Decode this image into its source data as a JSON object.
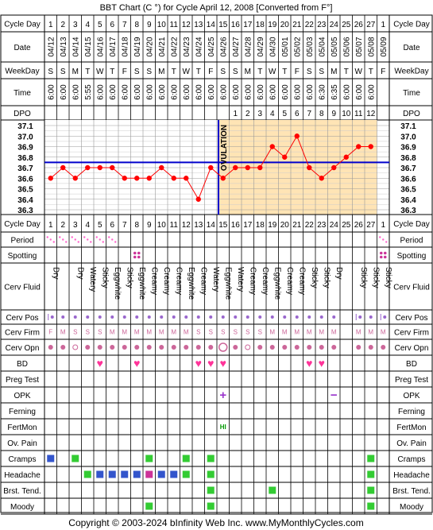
{
  "title": "BBT Chart (C °) for Cycle April 12, 2008  [Converted from F°]",
  "copyright": "Copyright © 2003-2024 bInfinity Web Inc.     www.MyMonthlyCycles.com",
  "labels": {
    "cycle_day": "Cycle Day",
    "date": "Date",
    "weekday": "WeekDay",
    "time": "Time",
    "dpo": "DPO",
    "period": "Period",
    "spotting": "Spotting",
    "cerv_fluid": "Cerv Fluid",
    "cerv_pos": "Cerv Pos",
    "cerv_firm": "Cerv Firm",
    "cerv_opn": "Cerv Opn",
    "bd": "BD",
    "preg_test": "Preg Test",
    "opk": "OPK",
    "ferning": "Ferning",
    "fertmon": "FertMon",
    "ov_pain": "Ov. Pain",
    "cramps": "Cramps",
    "headache": "Headache",
    "brst_tend": "Brst. Tend.",
    "moody": "Moody"
  },
  "colors": {
    "grid_bg": "#ffffff",
    "chart_bg_pre": "#ffffff",
    "chart_bg_post": "#ffe4b5",
    "temp_line": "#ff0000",
    "temp_point": "#ff0000",
    "coverline": "#0000cc",
    "ovulation_line": "#0000cc",
    "period": "#ff66cc",
    "spotting": "#cc3399",
    "heart": "#ff3399",
    "cramps": "#3355cc",
    "symptom_green": "#33cc33",
    "symptom_blue": "#3355cc",
    "symptom_magenta": "#cc3399",
    "cerv_dot": "#cc6699",
    "cerv_pos_dot": "#9966cc",
    "opk_mark": "#9933cc",
    "fertmon": "#009900"
  },
  "chart_data": {
    "type": "line",
    "title": "BBT Chart (C °) for Cycle April 12, 2008  [Converted from F°]",
    "cycle_days": [
      "1",
      "2",
      "3",
      "4",
      "5",
      "6",
      "7",
      "8",
      "9",
      "10",
      "11",
      "12",
      "13",
      "14",
      "15",
      "16",
      "17",
      "18",
      "19",
      "20",
      "21",
      "22",
      "23",
      "24",
      "25",
      "26",
      "27",
      "1"
    ],
    "dates": [
      "04/12",
      "04/13",
      "04/14",
      "04/15",
      "04/16",
      "04/17",
      "04/18",
      "04/19",
      "04/20",
      "04/21",
      "04/22",
      "04/23",
      "04/24",
      "04/25",
      "04/26",
      "04/27",
      "04/28",
      "04/29",
      "04/30",
      "05/01",
      "05/02",
      "05/03",
      "05/04",
      "05/05",
      "05/06",
      "05/07",
      "05/08",
      "05/09"
    ],
    "weekdays": [
      "S",
      "S",
      "M",
      "T",
      "W",
      "T",
      "F",
      "S",
      "S",
      "M",
      "T",
      "W",
      "T",
      "F",
      "S",
      "S",
      "M",
      "T",
      "W",
      "T",
      "F",
      "S",
      "S",
      "M",
      "T",
      "W",
      "T",
      "F"
    ],
    "times": [
      "6:00",
      "6:00",
      "6:00",
      "5:55",
      "6:00",
      "6:00",
      "6:00",
      "6:00",
      "6:00",
      "6:00",
      "6:00",
      "6:00",
      "6:00",
      "6:00",
      "6:00",
      "6:00",
      "6:00",
      "6:00",
      "6:00",
      "6:00",
      "6:00",
      "6:00",
      "6:30",
      "6:35",
      "6:00",
      "6:00",
      "6:00",
      ""
    ],
    "dpo": [
      "",
      "",
      "",
      "",
      "",
      "",
      "",
      "",
      "",
      "",
      "",
      "",
      "",
      "",
      "",
      "1",
      "2",
      "3",
      "4",
      "5",
      "6",
      "7",
      "8",
      "9",
      "10",
      "11",
      "12",
      ""
    ],
    "series": [
      {
        "values": [
          36.6,
          36.7,
          36.6,
          36.7,
          36.7,
          36.7,
          36.6,
          36.6,
          36.6,
          36.7,
          36.6,
          36.6,
          36.4,
          36.7,
          36.6,
          36.7,
          36.7,
          36.7,
          36.9,
          36.8,
          37.0,
          36.7,
          36.6,
          36.7,
          36.8,
          36.9,
          36.9,
          null
        ]
      }
    ],
    "ylabels": [
      "37.1",
      "37.0",
      "36.9",
      "36.8",
      "36.7",
      "36.6",
      "36.5",
      "36.4",
      "36.3"
    ],
    "ylim": [
      36.3,
      37.1
    ],
    "coverline": 36.75,
    "ovulation_day_index": 14,
    "ovulation_label": "OVULATION",
    "grid": true
  },
  "rows": {
    "period": [
      "light",
      "light",
      "light",
      "light",
      "light",
      "light",
      "",
      "",
      "",
      "",
      "",
      "",
      "",
      "",
      "",
      "",
      "",
      "",
      "",
      "",
      "",
      "",
      "",
      "",
      "",
      "",
      "",
      "light"
    ],
    "spotting": [
      "",
      "",
      "",
      "",
      "",
      "",
      "",
      "dots",
      "",
      "",
      "",
      "",
      "",
      "",
      "",
      "",
      "",
      "",
      "",
      "",
      "",
      "",
      "",
      "",
      "",
      "",
      "",
      "dots"
    ],
    "cerv_fluid": [
      "Dry",
      "",
      "Dry",
      "Watery",
      "Sticky",
      "Eggwhite",
      "Sticky",
      "Eggwhite",
      "Creamy",
      "Creamy",
      "Creamy",
      "Eggwhite",
      "Creamy",
      "Watery",
      "Eggwhite",
      "Watery",
      "Creamy",
      "Creamy",
      "Eggwhite",
      "Creamy",
      "Creamy",
      "Sticky",
      "Sticky",
      "Dry",
      "",
      "Sticky",
      "Sticky",
      "Sticky"
    ],
    "cerv_pos": [
      "|•",
      "•",
      "•",
      "•",
      "•",
      "•",
      "•",
      "•",
      "•",
      "•",
      "•",
      "•",
      "•",
      "•",
      "•",
      "•",
      "•",
      "•",
      "•",
      "•",
      "•",
      "•",
      "•",
      "•",
      "",
      "|•",
      "•",
      "|•"
    ],
    "cerv_firm": [
      "F",
      "M",
      "S",
      "S",
      "S",
      "M",
      "M",
      "M",
      "M",
      "M",
      "M",
      "M",
      "S",
      "S",
      "S",
      "S",
      "S",
      "S",
      "M",
      "M",
      "M",
      "M",
      "M",
      "M",
      "",
      "M",
      "M",
      "M"
    ],
    "cerv_opn": [
      "•",
      "•",
      "○",
      "•",
      "•",
      "•",
      "•",
      "•",
      "•",
      "•",
      "•",
      "•",
      "•",
      "•",
      "◯",
      "•",
      "○",
      "•",
      "•",
      "•",
      "•",
      "•",
      "•",
      "•",
      "",
      "•",
      "•",
      "•"
    ],
    "bd": [
      "",
      "",
      "",
      "",
      "♥",
      "",
      "",
      "♥",
      "",
      "",
      "",
      "",
      "♥",
      "♥",
      "♥",
      "",
      "",
      "",
      "",
      "",
      "",
      "♥",
      "♥",
      "",
      "",
      "",
      "",
      ""
    ],
    "preg_test": [
      "",
      "",
      "",
      "",
      "",
      "",
      "",
      "",
      "",
      "",
      "",
      "",
      "",
      "",
      "",
      "",
      "",
      "",
      "",
      "",
      "",
      "",
      "",
      "",
      "",
      "",
      "",
      ""
    ],
    "opk": [
      "",
      "",
      "",
      "",
      "",
      "",
      "",
      "",
      "",
      "",
      "",
      "",
      "",
      "",
      "+",
      "",
      "",
      "",
      "",
      "",
      "",
      "",
      "",
      "−",
      "",
      "",
      "",
      ""
    ],
    "ferning": [
      "",
      "",
      "",
      "",
      "",
      "",
      "",
      "",
      "",
      "",
      "",
      "",
      "",
      "",
      "",
      "",
      "",
      "",
      "",
      "",
      "",
      "",
      "",
      "",
      "",
      "",
      "",
      ""
    ],
    "fertmon": [
      "",
      "",
      "",
      "",
      "",
      "",
      "",
      "",
      "",
      "",
      "",
      "",
      "",
      "",
      "HI",
      "",
      "",
      "",
      "",
      "",
      "",
      "",
      "",
      "",
      "",
      "",
      "",
      ""
    ],
    "ov_pain": [
      "",
      "",
      "",
      "",
      "",
      "",
      "",
      "",
      "",
      "",
      "",
      "",
      "",
      "",
      "",
      "",
      "",
      "",
      "",
      "",
      "",
      "",
      "",
      "",
      "",
      "",
      "",
      ""
    ],
    "cramps": [
      "blue",
      "",
      "green",
      "",
      "",
      "",
      "",
      "",
      "green",
      "",
      "",
      "green",
      "",
      "green",
      "",
      "",
      "",
      "",
      "",
      "",
      "",
      "",
      "",
      "",
      "",
      "",
      "green",
      ""
    ],
    "headache": [
      "",
      "",
      "",
      "green",
      "blue",
      "blue",
      "blue",
      "blue",
      "magenta",
      "blue",
      "blue",
      "green",
      "",
      "green",
      "",
      "",
      "",
      "",
      "",
      "",
      "",
      "",
      "",
      "",
      "",
      "",
      "green",
      ""
    ],
    "brst_tend": [
      "",
      "",
      "",
      "",
      "",
      "",
      "",
      "",
      "",
      "",
      "",
      "",
      "",
      "green",
      "",
      "",
      "",
      "",
      "green",
      "",
      "",
      "",
      "",
      "",
      "",
      "",
      "green",
      ""
    ],
    "moody": [
      "",
      "",
      "",
      "",
      "",
      "",
      "",
      "",
      "green",
      "",
      "",
      "",
      "",
      "green",
      "",
      "",
      "",
      "",
      "",
      "",
      "",
      "",
      "",
      "",
      "",
      "",
      "green",
      ""
    ]
  }
}
